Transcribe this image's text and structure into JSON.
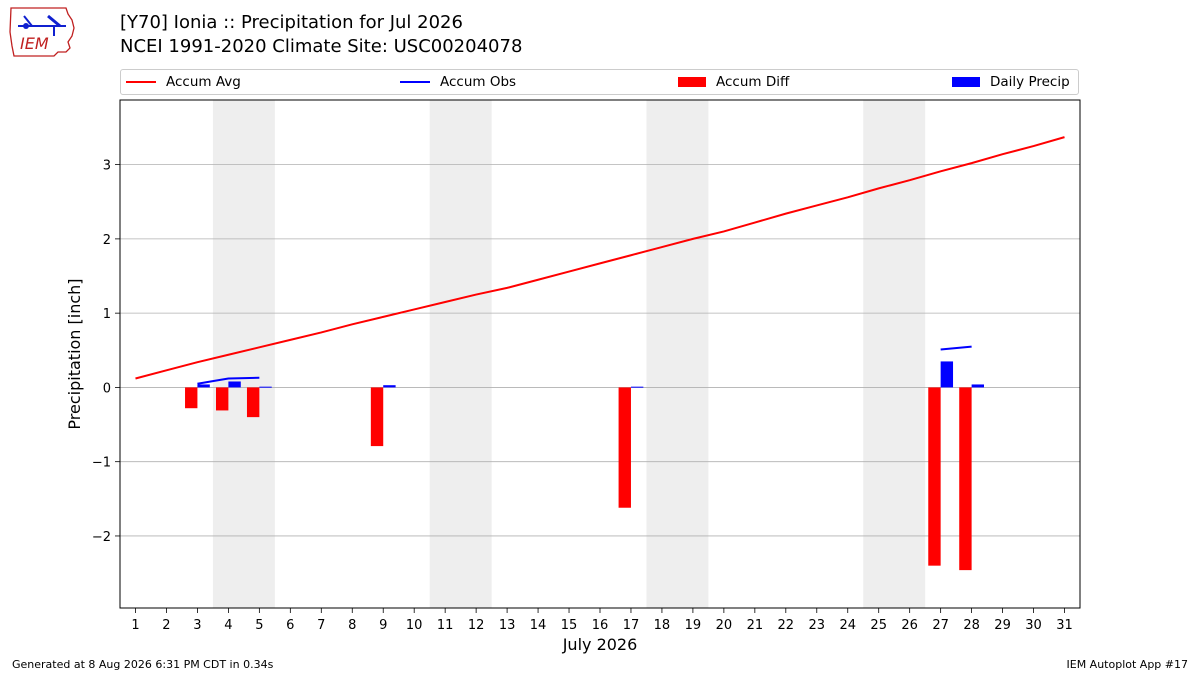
{
  "header": {
    "title_line1": "[Y70] Ionia :: Precipitation for Jul 2026",
    "title_line2": "NCEI 1991-2020 Climate Site: USC00204078",
    "logo_text": "IEM"
  },
  "footer": {
    "generated": "Generated at 8 Aug 2026 6:31 PM CDT in 0.34s",
    "app": "IEM Autoplot App #17"
  },
  "colors": {
    "accum_avg": "#ff0000",
    "accum_obs": "#0000ff",
    "accum_diff": "#ff0000",
    "daily_precip": "#0000ff",
    "weekend_shade": "#eeeeee",
    "grid": "#b0b0b0"
  },
  "chart_data": {
    "type": "bar",
    "xlabel": "July 2026",
    "ylabel": "Precipitation [inch]",
    "xlim": [
      0.5,
      31.5
    ],
    "ylim": [
      -2.97,
      3.87
    ],
    "y_ticks": [
      -2,
      -1,
      0,
      1,
      2,
      3
    ],
    "y_tick_labels": [
      "−2",
      "−1",
      "0",
      "1",
      "2",
      "3"
    ],
    "x_ticks": [
      1,
      2,
      3,
      4,
      5,
      6,
      7,
      8,
      9,
      10,
      11,
      12,
      13,
      14,
      15,
      16,
      17,
      18,
      19,
      20,
      21,
      22,
      23,
      24,
      25,
      26,
      27,
      28,
      29,
      30,
      31
    ],
    "grid": "horizontal",
    "legend_position": "top",
    "weekend_spans": [
      [
        3.5,
        5.5
      ],
      [
        10.5,
        12.5
      ],
      [
        17.5,
        19.5
      ],
      [
        24.5,
        26.5
      ]
    ],
    "legend": [
      "Accum Avg",
      "Accum Obs",
      "Accum Diff",
      "Daily Precip"
    ],
    "series": [
      {
        "name": "Accum Avg",
        "kind": "line",
        "x": [
          1,
          2,
          3,
          4,
          5,
          6,
          7,
          8,
          9,
          10,
          11,
          12,
          13,
          14,
          15,
          16,
          17,
          18,
          19,
          20,
          21,
          22,
          23,
          24,
          25,
          26,
          27,
          28,
          29,
          30,
          31
        ],
        "values": [
          0.12,
          0.23,
          0.34,
          0.44,
          0.54,
          0.64,
          0.74,
          0.85,
          0.95,
          1.05,
          1.15,
          1.25,
          1.34,
          1.45,
          1.56,
          1.67,
          1.78,
          1.89,
          2.0,
          2.1,
          2.22,
          2.34,
          2.45,
          2.56,
          2.68,
          2.79,
          2.91,
          3.02,
          3.14,
          3.25,
          3.37
        ]
      },
      {
        "name": "Accum Obs",
        "kind": "line",
        "segments": [
          {
            "x": [
              3,
              4,
              5
            ],
            "values": [
              0.05,
              0.12,
              0.13
            ]
          },
          {
            "x": [
              27,
              28
            ],
            "values": [
              0.51,
              0.55
            ]
          }
        ]
      },
      {
        "name": "Accum Diff",
        "kind": "bar",
        "x": [
          3,
          4,
          5,
          9,
          17,
          27,
          28
        ],
        "values": [
          -0.28,
          -0.31,
          -0.4,
          -0.79,
          -1.62,
          -2.4,
          -2.46
        ]
      },
      {
        "name": "Daily Precip",
        "kind": "bar",
        "x": [
          3,
          4,
          5,
          9,
          17,
          27,
          28
        ],
        "values": [
          0.04,
          0.08,
          0.01,
          0.03,
          0.01,
          0.35,
          0.04
        ]
      }
    ]
  }
}
